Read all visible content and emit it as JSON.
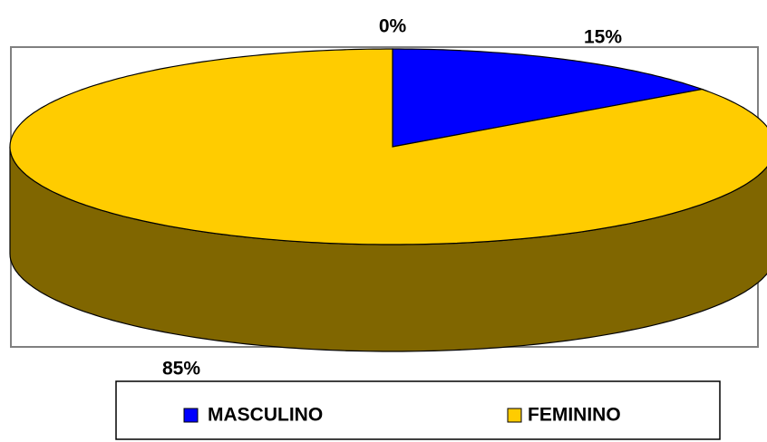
{
  "chart_data": {
    "type": "pie",
    "categories": [
      "MASCULINO",
      "FEMININO",
      null
    ],
    "values": [
      15,
      85,
      0
    ],
    "value_labels": [
      "15%",
      "85%",
      "0%"
    ],
    "colors": [
      "#0000FF",
      "#FFCC00",
      null
    ],
    "legend": "bottom"
  }
}
